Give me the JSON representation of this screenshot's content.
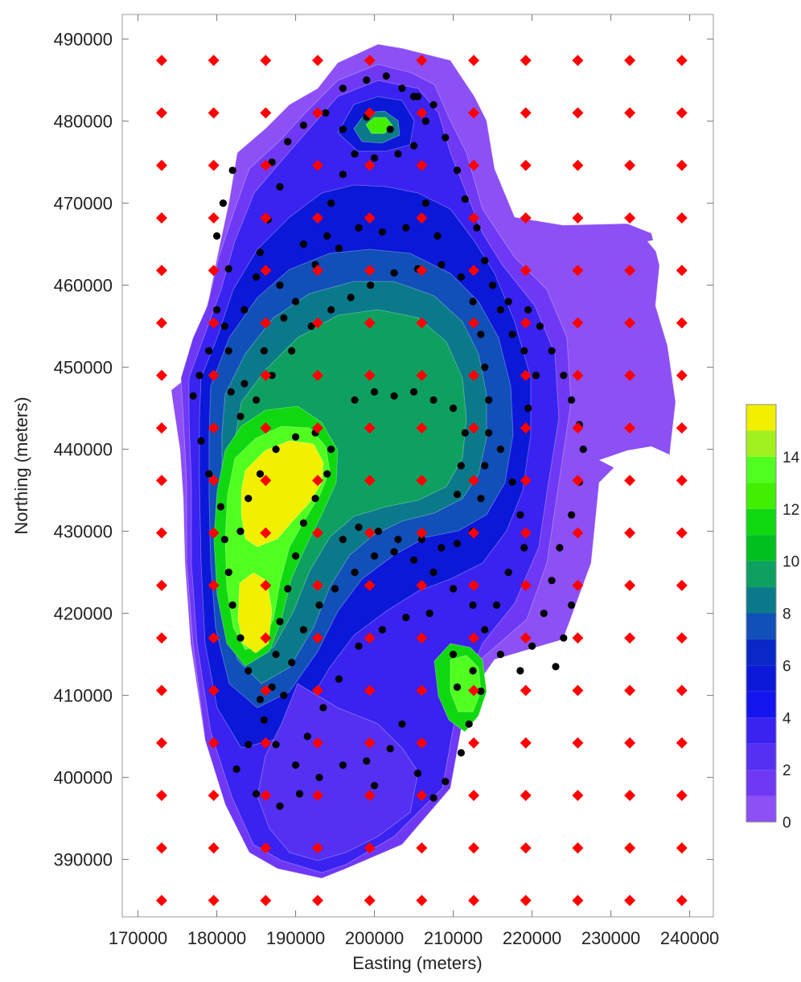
{
  "chart_data": {
    "type": "contour",
    "xlabel": "Easting (meters)",
    "ylabel": "Northing (meters)",
    "xlim": [
      168000,
      243000
    ],
    "ylim": [
      383000,
      493000
    ],
    "x_ticks": [
      170000,
      180000,
      190000,
      200000,
      210000,
      220000,
      230000,
      240000
    ],
    "y_ticks": [
      390000,
      400000,
      410000,
      420000,
      430000,
      440000,
      450000,
      460000,
      470000,
      480000,
      490000
    ],
    "grid": false,
    "colorbar": {
      "position": "right",
      "levels": [
        0,
        1,
        2,
        3,
        4,
        5,
        6,
        7,
        8,
        9,
        10,
        11,
        12,
        13,
        14,
        15,
        16
      ],
      "tick_labels": [
        "0",
        "2",
        "4",
        "6",
        "8",
        "10",
        "12",
        "14"
      ],
      "tick_values": [
        0,
        2,
        4,
        6,
        8,
        10,
        12,
        14
      ],
      "colors": [
        "#8c50f5",
        "#6f38f5",
        "#5530f2",
        "#3a22f0",
        "#1414ee",
        "#0c18d8",
        "#0a28c8",
        "#1050b8",
        "#0a7a8a",
        "#0ea060",
        "#00c020",
        "#10d810",
        "#40f000",
        "#50ff20",
        "#a0f020",
        "#f0f000"
      ]
    },
    "grid_markers": {
      "style": "red-diamond",
      "color": "#ff0000",
      "x": [
        173000,
        179600,
        186200,
        192800,
        199400,
        206000,
        212600,
        219200,
        225800,
        232400,
        239000
      ],
      "y": [
        385000,
        391400,
        397800,
        404200,
        410600,
        417000,
        423400,
        429800,
        436200,
        442600,
        449000,
        455400,
        461800,
        468200,
        474600,
        481000,
        487400
      ]
    },
    "sample_points_style": {
      "color": "#000000",
      "marker": "black-dot"
    },
    "sample_points": [
      [
        199000,
        485000
      ],
      [
        201500,
        485500
      ],
      [
        203500,
        484000
      ],
      [
        205500,
        483000
      ],
      [
        207500,
        482000
      ],
      [
        196000,
        484000
      ],
      [
        193800,
        481000
      ],
      [
        191000,
        479500
      ],
      [
        189000,
        477500
      ],
      [
        187000,
        475000
      ],
      [
        182000,
        474000
      ],
      [
        180800,
        470000
      ],
      [
        180000,
        466000
      ],
      [
        181500,
        462000
      ],
      [
        185000,
        461000
      ],
      [
        183500,
        457000
      ],
      [
        181000,
        455000
      ],
      [
        179000,
        452000
      ],
      [
        177800,
        449000
      ],
      [
        177000,
        446500
      ],
      [
        188000,
        472000
      ],
      [
        186500,
        468000
      ],
      [
        185500,
        464000
      ],
      [
        188000,
        460000
      ],
      [
        190000,
        458000
      ],
      [
        192500,
        462500
      ],
      [
        194000,
        466000
      ],
      [
        194500,
        470000
      ],
      [
        196000,
        473500
      ],
      [
        197500,
        476000
      ],
      [
        200000,
        475500
      ],
      [
        203000,
        476000
      ],
      [
        205000,
        477000
      ],
      [
        206500,
        480000
      ],
      [
        205000,
        483000
      ],
      [
        209000,
        478000
      ],
      [
        210500,
        474000
      ],
      [
        211500,
        470500
      ],
      [
        213000,
        467000
      ],
      [
        214000,
        463000
      ],
      [
        215000,
        460000
      ],
      [
        217000,
        458000
      ],
      [
        219500,
        457000
      ],
      [
        221000,
        455000
      ],
      [
        222500,
        452000
      ],
      [
        224000,
        449000
      ],
      [
        225000,
        446000
      ],
      [
        226000,
        443000
      ],
      [
        226500,
        440000
      ],
      [
        226000,
        436000
      ],
      [
        225000,
        432000
      ],
      [
        223500,
        428000
      ],
      [
        222500,
        424000
      ],
      [
        221500,
        420000
      ],
      [
        220000,
        416000
      ],
      [
        218500,
        413000
      ],
      [
        216000,
        415000
      ],
      [
        214000,
        418000
      ],
      [
        212500,
        421000
      ],
      [
        210000,
        423000
      ],
      [
        207500,
        425000
      ],
      [
        205000,
        426500
      ],
      [
        202500,
        427500
      ],
      [
        200000,
        427000
      ],
      [
        197500,
        425000
      ],
      [
        195000,
        423000
      ],
      [
        193000,
        421000
      ],
      [
        191000,
        418000
      ],
      [
        189500,
        414000
      ],
      [
        188500,
        410000
      ],
      [
        186000,
        407000
      ],
      [
        184000,
        404000
      ],
      [
        182500,
        401000
      ],
      [
        185000,
        398000
      ],
      [
        188000,
        396500
      ],
      [
        190500,
        398000
      ],
      [
        193000,
        400000
      ],
      [
        196000,
        401500
      ],
      [
        199000,
        402000
      ],
      [
        202000,
        403500
      ],
      [
        203500,
        406500
      ],
      [
        205500,
        400500
      ],
      [
        207500,
        397500
      ],
      [
        209000,
        399500
      ],
      [
        211000,
        403000
      ],
      [
        212000,
        406500
      ],
      [
        213500,
        410500
      ],
      [
        212500,
        413000
      ],
      [
        210500,
        411000
      ],
      [
        200000,
        399000
      ],
      [
        178000,
        441000
      ],
      [
        179000,
        437000
      ],
      [
        180500,
        433000
      ],
      [
        181000,
        429000
      ],
      [
        181500,
        425000
      ],
      [
        182000,
        421000
      ],
      [
        183000,
        417000
      ],
      [
        184000,
        413000
      ],
      [
        185500,
        409500
      ],
      [
        187000,
        411000
      ],
      [
        187500,
        415000
      ],
      [
        188000,
        419000
      ],
      [
        189000,
        423000
      ],
      [
        190000,
        427000
      ],
      [
        191000,
        431000
      ],
      [
        192500,
        434000
      ],
      [
        194000,
        437000
      ],
      [
        194500,
        440000
      ],
      [
        192500,
        442000
      ],
      [
        190000,
        441500
      ],
      [
        187500,
        440000
      ],
      [
        185500,
        437000
      ],
      [
        184000,
        434000
      ],
      [
        183000,
        430000
      ],
      [
        181800,
        447000
      ],
      [
        183000,
        444000
      ],
      [
        185000,
        446000
      ],
      [
        187000,
        449000
      ],
      [
        189500,
        452000
      ],
      [
        192000,
        455000
      ],
      [
        194500,
        457000
      ],
      [
        197000,
        458500
      ],
      [
        199500,
        460000
      ],
      [
        202500,
        461500
      ],
      [
        205500,
        462000
      ],
      [
        208500,
        462500
      ],
      [
        211000,
        461000
      ],
      [
        212500,
        458000
      ],
      [
        213500,
        454000
      ],
      [
        214000,
        450000
      ],
      [
        214500,
        446000
      ],
      [
        214500,
        442000
      ],
      [
        214000,
        438000
      ],
      [
        213500,
        434000
      ],
      [
        212500,
        430000
      ],
      [
        210500,
        428500
      ],
      [
        208500,
        428000
      ],
      [
        206000,
        429000
      ],
      [
        203000,
        429000
      ],
      [
        200500,
        430000
      ],
      [
        198000,
        430500
      ],
      [
        196000,
        429000
      ],
      [
        197500,
        446000
      ],
      [
        200000,
        447000
      ],
      [
        202500,
        446500
      ],
      [
        205000,
        447000
      ],
      [
        207500,
        446000
      ],
      [
        210000,
        445000
      ],
      [
        211500,
        442000
      ],
      [
        211000,
        438000
      ],
      [
        210500,
        434500
      ],
      [
        216000,
        440000
      ],
      [
        217500,
        436000
      ],
      [
        218500,
        432000
      ],
      [
        219000,
        428000
      ],
      [
        217000,
        425000
      ],
      [
        215500,
        421000
      ],
      [
        223000,
        413500
      ],
      [
        224000,
        417000
      ],
      [
        225000,
        421000
      ],
      [
        219500,
        445000
      ],
      [
        220500,
        449000
      ],
      [
        219000,
        452000
      ],
      [
        217500,
        454000
      ],
      [
        216000,
        457000
      ],
      [
        180000,
        457000
      ],
      [
        181500,
        452000
      ],
      [
        183500,
        448000
      ],
      [
        186000,
        452000
      ],
      [
        188500,
        456000
      ],
      [
        210000,
        415000
      ],
      [
        207000,
        420000
      ],
      [
        204000,
        419500
      ],
      [
        201000,
        418000
      ],
      [
        198000,
        416000
      ],
      [
        195500,
        412000
      ],
      [
        193500,
        408500
      ],
      [
        191500,
        405000
      ],
      [
        190000,
        401500
      ],
      [
        187500,
        404000
      ],
      [
        196000,
        479000
      ],
      [
        199000,
        480500
      ],
      [
        202000,
        479000
      ],
      [
        208000,
        466000
      ],
      [
        206500,
        470000
      ],
      [
        204000,
        467000
      ],
      [
        201000,
        466500
      ],
      [
        198000,
        467000
      ],
      [
        195500,
        464500
      ],
      [
        191000,
        465000
      ]
    ]
  }
}
